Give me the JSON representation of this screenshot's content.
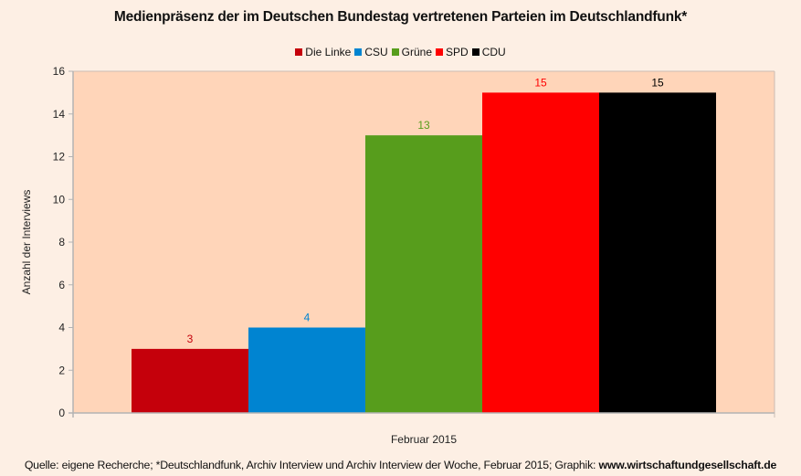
{
  "chart_data": {
    "type": "bar",
    "title": "Medienpräsenz der im Deutschen Bundestag vertretenen Parteien im Deutschlandfunk*",
    "xlabel": "Februar 2015",
    "ylabel": "Anzahl der Interviews",
    "categories": [
      "Februar 2015"
    ],
    "series": [
      {
        "name": "Die Linke",
        "values": [
          3
        ],
        "color": "#c5000b",
        "label_color": "#c5000b"
      },
      {
        "name": "CSU",
        "values": [
          4
        ],
        "color": "#0084d1",
        "label_color": "#0084d1"
      },
      {
        "name": "Grüne",
        "values": [
          13
        ],
        "color": "#579d1c",
        "label_color": "#579d1c"
      },
      {
        "name": "SPD",
        "values": [
          15
        ],
        "color": "#ff0000",
        "label_color": "#ff0000"
      },
      {
        "name": "CDU",
        "values": [
          15
        ],
        "color": "#000000",
        "label_color": "#000000"
      }
    ],
    "ylim": [
      0,
      16
    ],
    "yticks": [
      0,
      2,
      4,
      6,
      8,
      10,
      12,
      14,
      16
    ],
    "grid": false,
    "legend_position": "top-center",
    "plot_background": "#ffd5b9",
    "page_background": "#fdefe4"
  },
  "footer": {
    "text": "Quelle: eigene Recherche; *Deutschlandfunk, Archiv Interview und Archiv Interview der Woche, Februar 2015; Graphik: ",
    "link": "www.wirtschaftundgesellschaft.de"
  }
}
